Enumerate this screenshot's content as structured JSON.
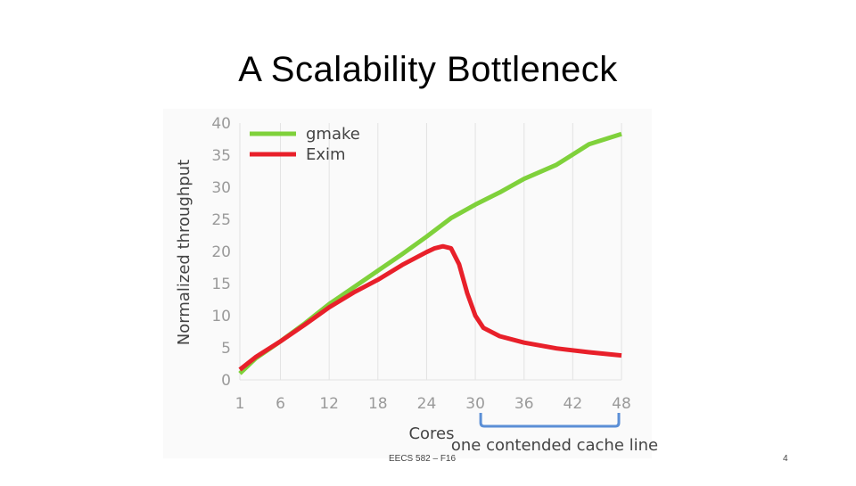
{
  "slide": {
    "title": "A Scalability Bottleneck",
    "footer": "EECS 582 – F16",
    "page_number": "4"
  },
  "chart_data": {
    "type": "line",
    "xlabel": "Cores",
    "ylabel": "Normalized throughput",
    "xlim": [
      1,
      48
    ],
    "ylim": [
      0,
      40
    ],
    "x_ticks": [
      1,
      6,
      12,
      18,
      24,
      30,
      36,
      42,
      48
    ],
    "y_ticks": [
      0,
      5,
      10,
      15,
      20,
      25,
      30,
      35,
      40
    ],
    "grid": "vertical",
    "legend": "top-left",
    "annotation": "one contended cache line",
    "annotation_range": [
      30,
      48
    ],
    "series": [
      {
        "name": "gmake",
        "color": "#7fd13b",
        "x": [
          1,
          3,
          6,
          9,
          12,
          15,
          18,
          21,
          24,
          27,
          30,
          33,
          36,
          40,
          44,
          48
        ],
        "y": [
          1,
          3.4,
          6,
          8.8,
          11.8,
          14.4,
          17,
          19.6,
          22.3,
          25.2,
          27.3,
          29.2,
          31.3,
          33.5,
          36.7,
          38.3
        ]
      },
      {
        "name": "Exim",
        "color": "#e8202a",
        "x": [
          1,
          3,
          6,
          9,
          12,
          15,
          18,
          21,
          24,
          25,
          26,
          27,
          28,
          29,
          30,
          31,
          33,
          36,
          40,
          44,
          48
        ],
        "y": [
          1.6,
          3.6,
          6,
          8.6,
          11.3,
          13.6,
          15.6,
          17.9,
          19.9,
          20.5,
          20.8,
          20.5,
          18,
          13.5,
          10,
          8.1,
          6.8,
          5.8,
          4.9,
          4.3,
          3.8
        ]
      }
    ]
  }
}
